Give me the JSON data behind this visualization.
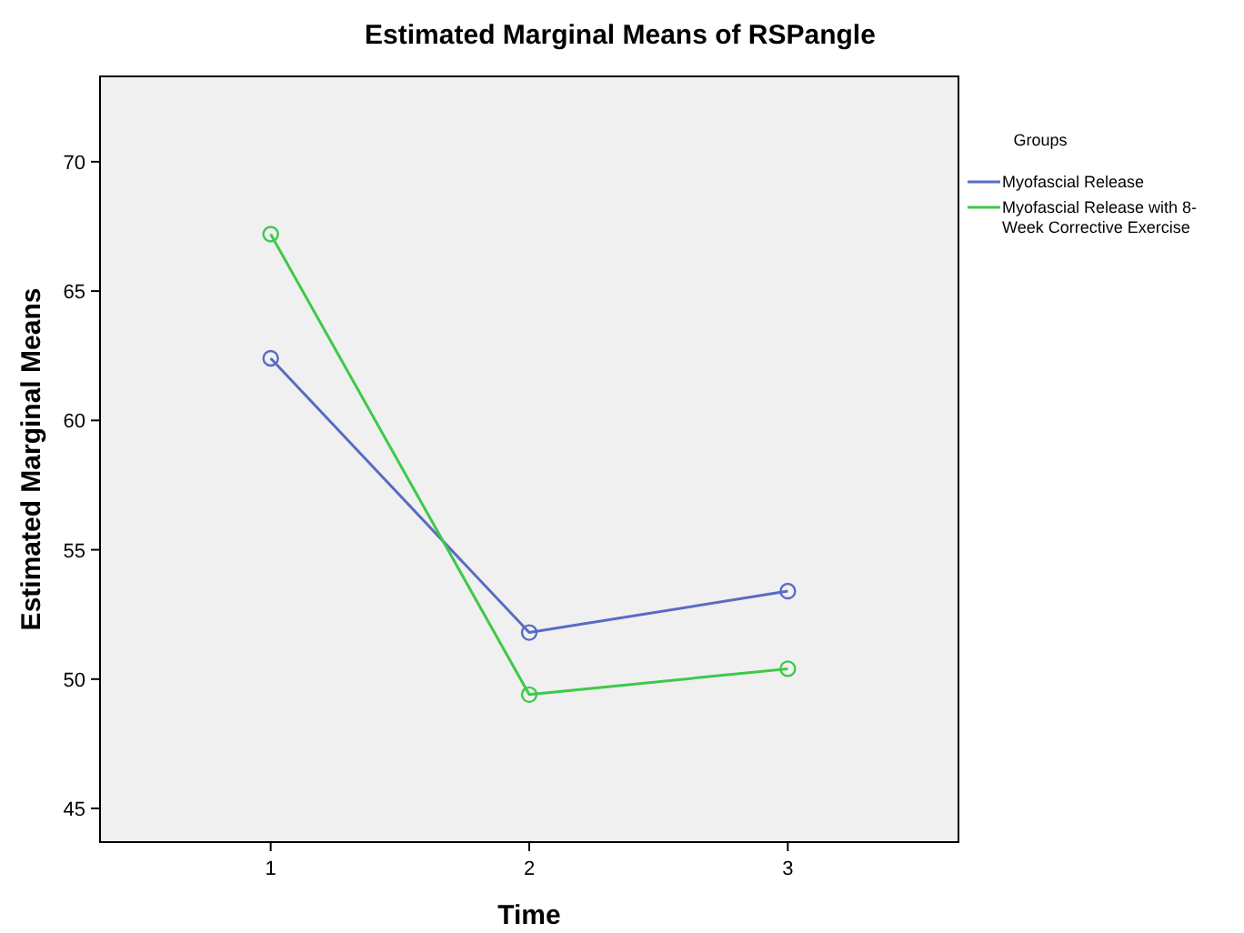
{
  "chart_data": {
    "type": "line",
    "title": "Estimated Marginal Means of RSPangle",
    "xlabel": "Time",
    "ylabel": "Estimated Marginal Means",
    "legend_title": "Groups",
    "categories": [
      "1",
      "2",
      "3"
    ],
    "series": [
      {
        "name": "Myofascial Release",
        "color": "#5a6bc4",
        "values": [
          62.4,
          51.8,
          53.4
        ]
      },
      {
        "name": "Myofascial Release with 8-Week Corrective Exercise",
        "color": "#3ec94b",
        "values": [
          67.2,
          49.4,
          50.4
        ]
      }
    ],
    "ylim": [
      43.7,
      73.3
    ],
    "yticks": [
      45,
      50,
      55,
      60,
      65,
      70
    ],
    "grid": false,
    "legend": "top right",
    "marker": "circle",
    "line_style": "solid"
  }
}
